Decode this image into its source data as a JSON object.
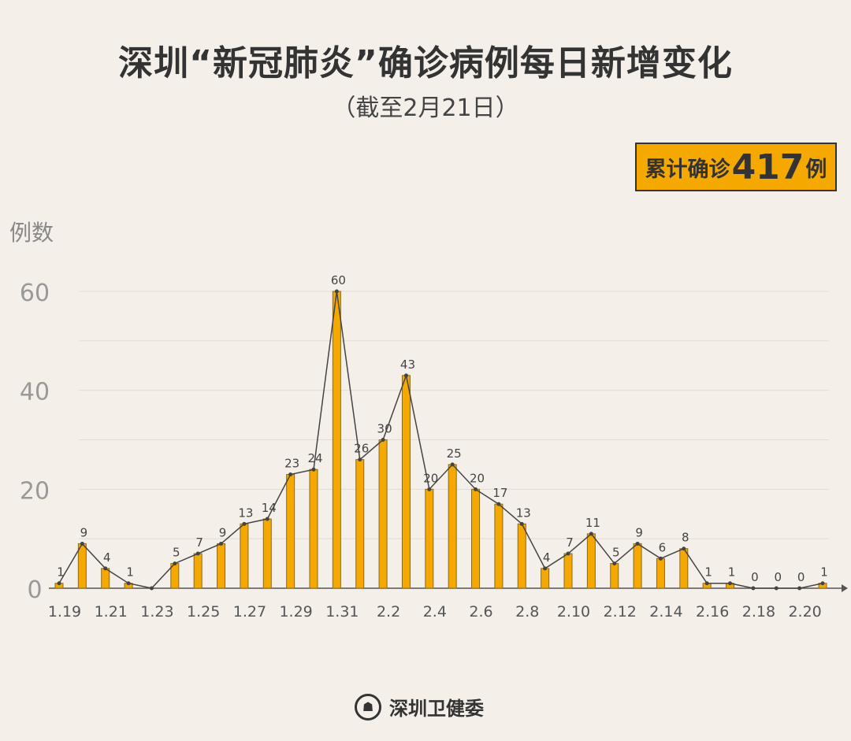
{
  "title": "深圳“新冠肺炎”确诊病例每日新增变化",
  "subtitle": "（截至2月21日）",
  "total_badge": {
    "prefix": "累计确诊",
    "number": "417",
    "suffix": "例"
  },
  "footer": {
    "org": "深圳卫健委",
    "logo_icon": "health-commission-seal"
  },
  "colors": {
    "bar": "#f5a800",
    "line": "#444444",
    "background": "#f4efe9"
  },
  "chart_data": {
    "type": "bar",
    "ylabel": "例数",
    "ylim": [
      0,
      60
    ],
    "yticks": [
      0,
      20,
      40,
      60
    ],
    "grid": true,
    "dates": [
      "1.19",
      "1.20",
      "1.21",
      "1.22",
      "1.23",
      "1.24",
      "1.25",
      "1.26",
      "1.27",
      "1.28",
      "1.29",
      "1.30",
      "1.31",
      "2.1",
      "2.2",
      "2.3",
      "2.4",
      "2.5",
      "2.6",
      "2.7",
      "2.8",
      "2.9",
      "2.10",
      "2.11",
      "2.12",
      "2.13",
      "2.14",
      "2.15",
      "2.16",
      "2.17",
      "2.18",
      "2.19",
      "2.20",
      "2.21"
    ],
    "xtick_labels": [
      "1.19",
      "1.21",
      "1.23",
      "1.25",
      "1.27",
      "1.29",
      "1.31",
      "2.2",
      "2.4",
      "2.6",
      "2.8",
      "2.10",
      "2.12",
      "2.14",
      "2.16",
      "2.18",
      "2.20"
    ],
    "values": [
      1,
      9,
      4,
      1,
      0,
      5,
      7,
      9,
      13,
      14,
      23,
      24,
      60,
      26,
      30,
      43,
      20,
      25,
      20,
      17,
      13,
      4,
      7,
      11,
      5,
      9,
      6,
      8,
      1,
      1,
      0,
      0,
      0,
      1
    ],
    "data_labels": [
      "1",
      "9",
      "4",
      "1",
      "",
      "5",
      "7",
      "9",
      "13",
      "14",
      "23",
      "24",
      "60",
      "26",
      "30",
      "43",
      "20",
      "25",
      "20",
      "17",
      "13",
      "4",
      "7",
      "11",
      "5",
      "9",
      "6",
      "8",
      "1",
      "1",
      "0",
      "0",
      "0",
      "1"
    ],
    "overlay": "line"
  }
}
